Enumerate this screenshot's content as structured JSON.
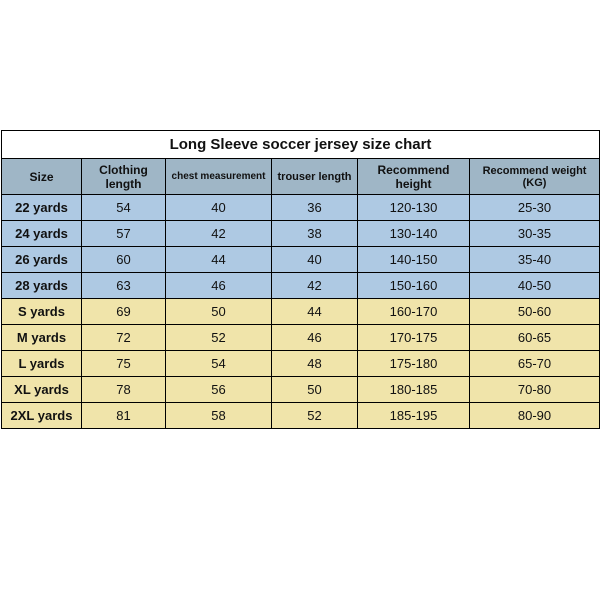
{
  "title": "Long Sleeve soccer jersey size chart",
  "columns": [
    {
      "label": "Size",
      "width": 80,
      "fontsize": 12,
      "header_lines": [
        "Size"
      ]
    },
    {
      "label": "Clothing length",
      "width": 84,
      "fontsize": 12,
      "header_lines": [
        "Clothing",
        "length"
      ]
    },
    {
      "label": "chest measurement",
      "width": 106,
      "fontsize": 10,
      "header_lines": [
        "chest measurement"
      ]
    },
    {
      "label": "trouser length",
      "width": 86,
      "fontsize": 11,
      "header_lines": [
        "trouser length"
      ]
    },
    {
      "label": "Recommend height",
      "width": 112,
      "fontsize": 12,
      "header_lines": [
        "Recommend",
        "height"
      ]
    },
    {
      "label": "Recommend weight (KG)",
      "width": 130,
      "fontsize": 11,
      "header_lines": [
        "Recommend weight (KG)"
      ]
    }
  ],
  "row_colors": {
    "blue": "#aec9e3",
    "yellow": "#f0e4aa"
  },
  "header_bg": "#9fb6c6",
  "title_bg": "#ffffff",
  "border_color": "#000000",
  "title_fontsize": 15,
  "rows": [
    {
      "group": "blue",
      "cells": [
        "22 yards",
        "54",
        "40",
        "36",
        "120-130",
        "25-30"
      ]
    },
    {
      "group": "blue",
      "cells": [
        "24 yards",
        "57",
        "42",
        "38",
        "130-140",
        "30-35"
      ]
    },
    {
      "group": "blue",
      "cells": [
        "26 yards",
        "60",
        "44",
        "40",
        "140-150",
        "35-40"
      ]
    },
    {
      "group": "blue",
      "cells": [
        "28 yards",
        "63",
        "46",
        "42",
        "150-160",
        "40-50"
      ]
    },
    {
      "group": "yellow",
      "cells": [
        "S yards",
        "69",
        "50",
        "44",
        "160-170",
        "50-60"
      ]
    },
    {
      "group": "yellow",
      "cells": [
        "M yards",
        "72",
        "52",
        "46",
        "170-175",
        "60-65"
      ]
    },
    {
      "group": "yellow",
      "cells": [
        "L yards",
        "75",
        "54",
        "48",
        "175-180",
        "65-70"
      ]
    },
    {
      "group": "yellow",
      "cells": [
        "XL yards",
        "78",
        "56",
        "50",
        "180-185",
        "70-80"
      ]
    },
    {
      "group": "yellow",
      "cells": [
        "2XL yards",
        "81",
        "58",
        "52",
        "185-195",
        "80-90"
      ]
    }
  ]
}
